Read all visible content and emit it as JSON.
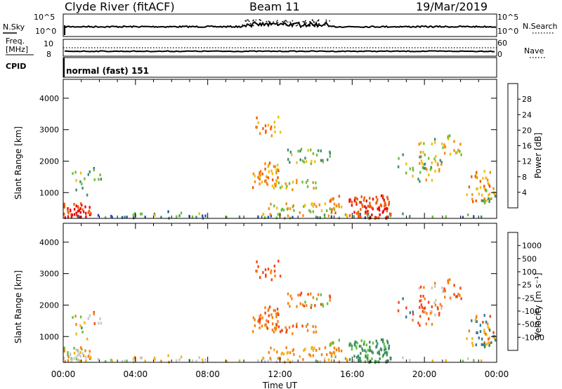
{
  "header": {
    "station": "Clyde River (fitACF)",
    "beam": "Beam 11",
    "date": "19/Mar/2019"
  },
  "top_panels": {
    "nsky_label": "N.Sky",
    "nsearch_label": "N.Search",
    "nsky_ticks": [
      "10^5",
      "10^0"
    ],
    "nsky_ticks_right": [
      "10^5",
      "10^0"
    ],
    "freq_label": "Freq.",
    "freq_unit": "[MHz]",
    "freq_ticks": [
      "10",
      "8"
    ],
    "nave_label": "Nave",
    "nave_ticks": [
      "60",
      "0"
    ],
    "cpid_label": "CPID",
    "cpid_value": "normal (fast) 151"
  },
  "chart_data": [
    {
      "type": "heatmap",
      "name": "power",
      "ylabel": "Slant Range [km]",
      "xlabel": "Time UT",
      "yticks": [
        "1000",
        "2000",
        "3000",
        "4000"
      ],
      "ylim": [
        180,
        4600
      ],
      "xlim": [
        "00:00",
        "24:00"
      ],
      "xticks": [
        "00:00",
        "04:00",
        "08:00",
        "12:00",
        "16:00",
        "20:00",
        "00:00"
      ],
      "colorbar": {
        "label": "Power [dB]",
        "ticks": [
          "4",
          "8",
          "12",
          "16",
          "20",
          "24",
          "28"
        ],
        "colors": [
          "#1432d2",
          "#2850b4",
          "#418c6e",
          "#6ebe3c",
          "#f0be14",
          "#f58c14",
          "#f05a0a",
          "#e60a0a"
        ]
      }
    },
    {
      "type": "heatmap",
      "name": "velocity",
      "ylabel": "Slant Range [km]",
      "xlabel": "Time UT",
      "yticks": [
        "1000",
        "2000",
        "3000",
        "4000"
      ],
      "ylim": [
        180,
        4600
      ],
      "xlim": [
        "00:00",
        "24:00"
      ],
      "colorbar": {
        "label": "Velocity [m s⁻¹]",
        "ticks": [
          "1000",
          "500",
          "100",
          "25",
          "-25",
          "-100",
          "-500",
          "-1000"
        ],
        "colors": [
          "#1e3cc8",
          "#2e7aa0",
          "#3c8c64",
          "#66c23a",
          "#c8c8c8",
          "#f0b414",
          "#f58214",
          "#f04614",
          "#e60a0a"
        ]
      }
    }
  ]
}
